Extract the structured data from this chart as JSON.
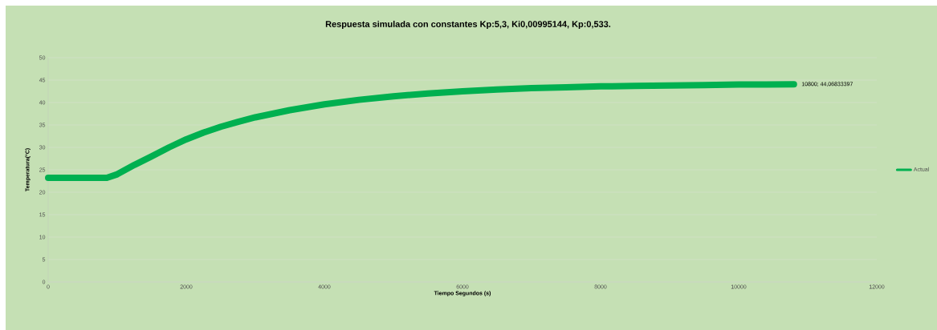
{
  "chart_data": {
    "type": "line",
    "title": "Respuesta simulada con constantes Kp:5,3, Ki0,00995144, Kp:0,533.",
    "xlabel": "Tiempo Segundos (s)",
    "ylabel": "Temperatura(°C)",
    "series": [
      {
        "name": "Actual",
        "color": "#00b050",
        "x": [
          0,
          300,
          600,
          850,
          1000,
          1250,
          1500,
          1750,
          2000,
          2250,
          2500,
          2750,
          3000,
          3500,
          4000,
          4500,
          5000,
          5500,
          6000,
          6500,
          7000,
          7500,
          8000,
          8500,
          9000,
          9500,
          10000,
          10400,
          10800
        ],
        "values": [
          23.2,
          23.2,
          23.2,
          23.2,
          24.0,
          26.1,
          28.0,
          30.0,
          31.8,
          33.3,
          34.6,
          35.7,
          36.7,
          38.3,
          39.6,
          40.6,
          41.4,
          42.0,
          42.5,
          42.9,
          43.2,
          43.4,
          43.6,
          43.7,
          43.8,
          43.9,
          44.0,
          44.0,
          44.06833397
        ]
      }
    ],
    "xlim": [
      0,
      12000
    ],
    "ylim": [
      0,
      50
    ],
    "xticks": [
      0,
      2000,
      4000,
      6000,
      8000,
      10000,
      12000
    ],
    "yticks": [
      0,
      5,
      10,
      15,
      20,
      25,
      30,
      35,
      40,
      45,
      50
    ],
    "grid": "y",
    "legend": "right",
    "marker": "none",
    "line_style": "solid",
    "annotations": [
      {
        "text": "10800; 44,06833397",
        "x": 10800,
        "y": 44.06833397
      }
    ]
  }
}
